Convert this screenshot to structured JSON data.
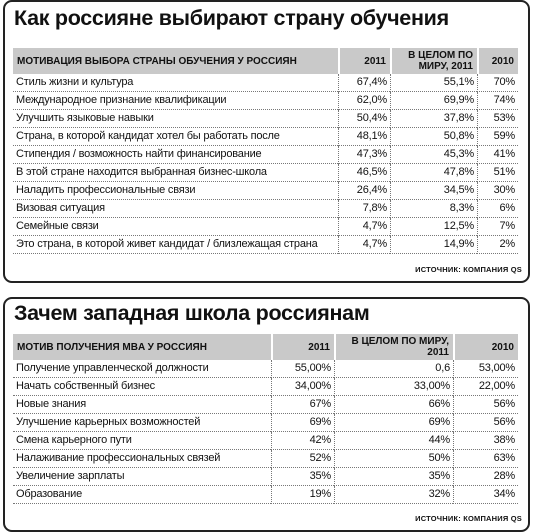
{
  "table1": {
    "title": "Как россияне выбирают страну обучения",
    "headers": {
      "motive": "МОТИВАЦИЯ ВЫБОРА СТРАНЫ ОБУЧЕНИЯ У РОССИЯН",
      "y2011": "2011",
      "world": "В ЦЕЛОМ ПО МИРУ, 2011",
      "y2010": "2010"
    },
    "rows": [
      {
        "label": "Стиль жизни и культура",
        "y2011": "67,4%",
        "world": "55,1%",
        "y2010": "70%"
      },
      {
        "label": "Международное признание квалификации",
        "y2011": "62,0%",
        "world": "69,9%",
        "y2010": "74%"
      },
      {
        "label": "Улучшить языковые навыки",
        "y2011": "50,4%",
        "world": "37,8%",
        "y2010": "53%"
      },
      {
        "label": "Страна, в которой кандидат хотел бы работать после",
        "y2011": "48,1%",
        "world": "50,8%",
        "y2010": "59%"
      },
      {
        "label": "Стипендия / возможность найти финансирование",
        "y2011": "47,3%",
        "world": "45,3%",
        "y2010": "41%"
      },
      {
        "label": "В этой стране находится выбранная бизнес-школа",
        "y2011": "46,5%",
        "world": "47,8%",
        "y2010": "51%"
      },
      {
        "label": "Наладить профессиональные связи",
        "y2011": "26,4%",
        "world": "34,5%",
        "y2010": "30%"
      },
      {
        "label": "Визовая ситуация",
        "y2011": "7,8%",
        "world": "8,3%",
        "y2010": "6%"
      },
      {
        "label": "Семейные связи",
        "y2011": "4,7%",
        "world": "12,5%",
        "y2010": "7%"
      },
      {
        "label": "Это страна, в которой живет кандидат / близлежащая страна",
        "y2011": "4,7%",
        "world": "14,9%",
        "y2010": "2%"
      }
    ],
    "source": "ИСТОЧНИК: КОМПАНИЯ QS"
  },
  "table2": {
    "title": "Зачем западная школа россиянам",
    "headers": {
      "motive": "МОТИВ ПОЛУЧЕНИЯ MBA У РОССИЯН",
      "y2011": "2011",
      "world": "В ЦЕЛОМ ПО МИРУ, 2011",
      "y2010": "2010"
    },
    "rows": [
      {
        "label": "Получение управленческой должности",
        "y2011": "55,00%",
        "world": "0,6",
        "y2010": "53,00%"
      },
      {
        "label": "Начать собственный бизнес",
        "y2011": "34,00%",
        "world": "33,00%",
        "y2010": "22,00%"
      },
      {
        "label": "Новые знания",
        "y2011": "67%",
        "world": "66%",
        "y2010": "56%"
      },
      {
        "label": "Улучшение карьерных возможностей",
        "y2011": "69%",
        "world": "69%",
        "y2010": "56%"
      },
      {
        "label": "Смена карьерного пути",
        "y2011": "42%",
        "world": "44%",
        "y2010": "38%"
      },
      {
        "label": "Налаживание профессиональных связей",
        "y2011": "52%",
        "world": "50%",
        "y2010": "63%"
      },
      {
        "label": "Увеличение зарплаты",
        "y2011": "35%",
        "world": "35%",
        "y2010": "28%"
      },
      {
        "label": "Образование",
        "y2011": "19%",
        "world": "32%",
        "y2010": "34%"
      }
    ],
    "source": "ИСТОЧНИК: КОМПАНИЯ QS"
  }
}
